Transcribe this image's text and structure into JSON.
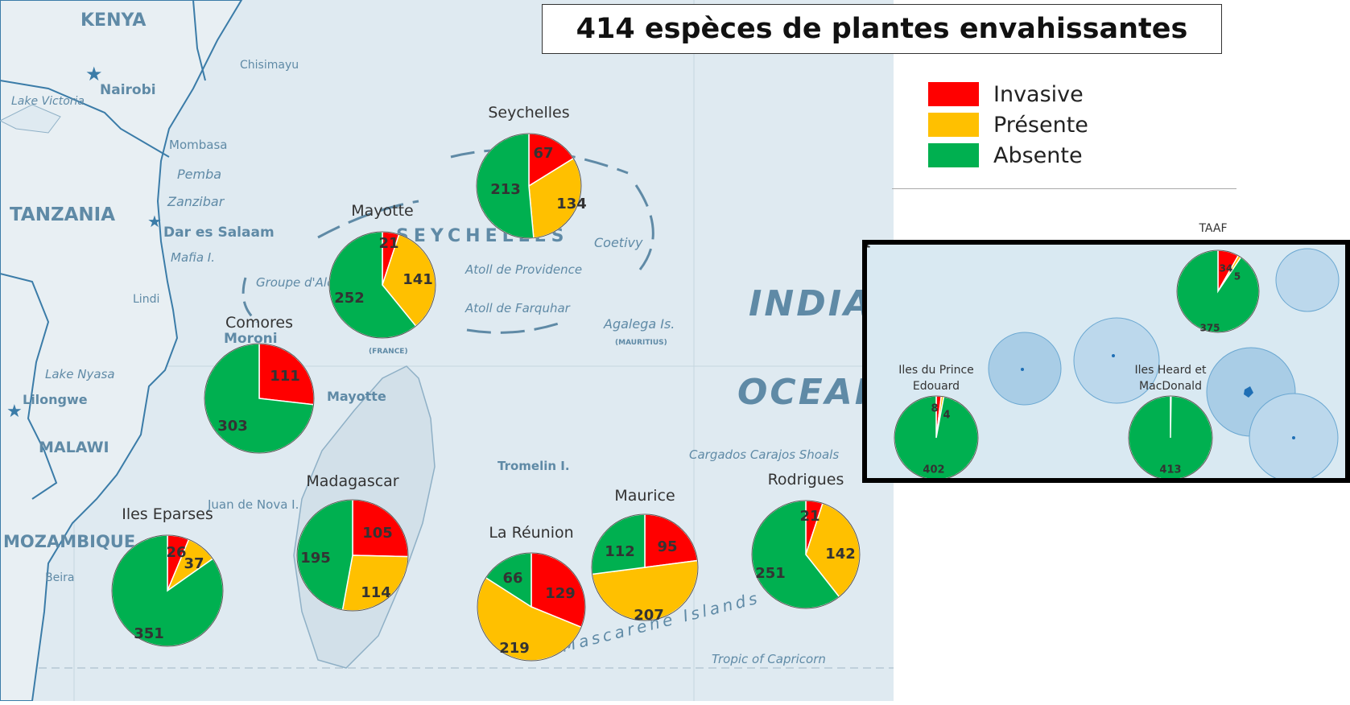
{
  "title": "414 espèces de plantes envahissantes",
  "colors": {
    "invasive": "#ff0000",
    "presente": "#ffc000",
    "absente": "#00b050",
    "water": "#dfeaf1",
    "land": "#e8eff3",
    "border": "#3b7ca8",
    "inset_bg": "#d9e9f2",
    "inset_circle": "#a9cde6"
  },
  "legend": [
    {
      "label": "Invasive",
      "color": "#ff0000"
    },
    {
      "label": "Présente",
      "color": "#ffc000"
    },
    {
      "label": "Absente",
      "color": "#00b050"
    }
  ],
  "map_labels": [
    {
      "text": "KENYA",
      "style": "country"
    },
    {
      "text": "TANZANIA",
      "style": "country"
    },
    {
      "text": "MALAWI",
      "style": "country"
    },
    {
      "text": "MOZAMBIQUE",
      "style": "country"
    },
    {
      "text": "Nairobi",
      "style": "city"
    },
    {
      "text": "Dar es Salaam",
      "style": "city"
    },
    {
      "text": "Lilongwe",
      "style": "city"
    },
    {
      "text": "Moroni",
      "style": "city"
    },
    {
      "text": "Chisimayu",
      "style": "place"
    },
    {
      "text": "Mombasa",
      "style": "place"
    },
    {
      "text": "Lindi",
      "style": "place"
    },
    {
      "text": "Beira",
      "style": "place"
    },
    {
      "text": "Lake Victoria",
      "style": "water"
    },
    {
      "text": "Lake Nyasa",
      "style": "water"
    },
    {
      "text": "Pemba",
      "style": "island"
    },
    {
      "text": "Zanzibar",
      "style": "island"
    },
    {
      "text": "Mafia I.",
      "style": "island"
    },
    {
      "text": "Groupe d'Aldabra",
      "style": "island"
    },
    {
      "text": "SEYCHELLES",
      "style": "country-sea"
    },
    {
      "text": "Coetivy",
      "style": "island"
    },
    {
      "text": "Atoll de Providence",
      "style": "island"
    },
    {
      "text": "Atoll de Farquhar",
      "style": "island"
    },
    {
      "text": "Agalega Is.",
      "style": "island"
    },
    {
      "text": "(MAURITIUS)",
      "style": "small"
    },
    {
      "text": "Mayotte",
      "style": "island"
    },
    {
      "text": "(FRANCE)",
      "style": "small"
    },
    {
      "text": "Juan de Nova I.",
      "style": "island"
    },
    {
      "text": "Tromelin I.",
      "style": "island"
    },
    {
      "text": "Cargados Carajos Shoals",
      "style": "island"
    },
    {
      "text": "INDIAN",
      "style": "ocean"
    },
    {
      "text": "OCEAN",
      "style": "ocean"
    },
    {
      "text": "Mascarene Islands",
      "style": "island"
    },
    {
      "text": "Tropic of Capricorn",
      "style": "water"
    }
  ],
  "chart_data": [
    {
      "type": "pie",
      "title": "Seychelles",
      "categories": [
        "Invasive",
        "Présente",
        "Absente"
      ],
      "values": [
        67,
        134,
        213
      ]
    },
    {
      "type": "pie",
      "title": "Mayotte",
      "categories": [
        "Invasive",
        "Présente",
        "Absente"
      ],
      "values": [
        21,
        141,
        252
      ]
    },
    {
      "type": "pie",
      "title": "Comores",
      "categories": [
        "Invasive",
        "Présente",
        "Absente"
      ],
      "values": [
        111,
        0,
        303
      ]
    },
    {
      "type": "pie",
      "title": "Madagascar",
      "categories": [
        "Invasive",
        "Présente",
        "Absente"
      ],
      "values": [
        105,
        114,
        195
      ]
    },
    {
      "type": "pie",
      "title": "Iles Eparses",
      "categories": [
        "Invasive",
        "Présente",
        "Absente"
      ],
      "values": [
        26,
        37,
        351
      ]
    },
    {
      "type": "pie",
      "title": "La Réunion",
      "categories": [
        "Invasive",
        "Présente",
        "Absente"
      ],
      "values": [
        129,
        219,
        66
      ]
    },
    {
      "type": "pie",
      "title": "Maurice",
      "categories": [
        "Invasive",
        "Présente",
        "Absente"
      ],
      "values": [
        95,
        207,
        112
      ]
    },
    {
      "type": "pie",
      "title": "Rodrigues",
      "categories": [
        "Invasive",
        "Présente",
        "Absente"
      ],
      "values": [
        21,
        142,
        251
      ]
    },
    {
      "type": "pie",
      "title": "TAAF",
      "categories": [
        "Invasive",
        "Présente",
        "Absente"
      ],
      "values": [
        34,
        5,
        375
      ]
    },
    {
      "type": "pie",
      "title": "Iles du Prince Edouard",
      "categories": [
        "Invasive",
        "Présente",
        "Absente"
      ],
      "values": [
        8,
        4,
        402
      ]
    },
    {
      "type": "pie",
      "title": "Iles Heard et MacDonald",
      "categories": [
        "Invasive",
        "Présente",
        "Absente"
      ],
      "values": [
        0,
        1,
        413
      ]
    }
  ]
}
